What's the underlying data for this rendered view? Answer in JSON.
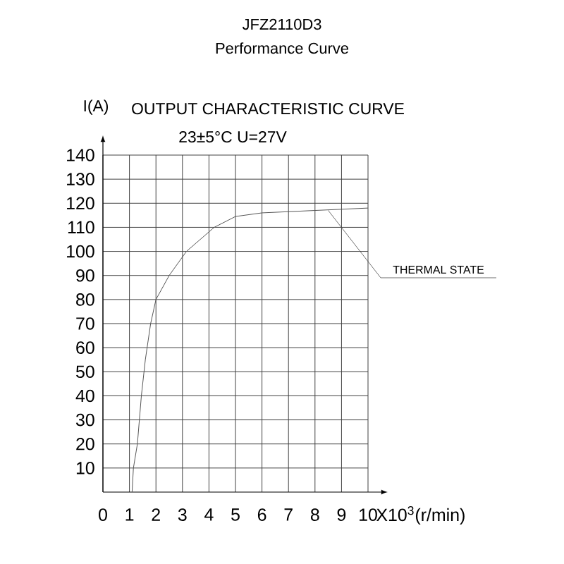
{
  "chart_data": {
    "type": "line",
    "title": "JFZ2110D3",
    "subtitle": "Performance Curve",
    "ylabel": "I(A)",
    "annotations": [
      "OUTPUT CHARACTERISTIC CURVE",
      "23±5°C U=27V",
      {
        "text": "THERMAL STATE",
        "x": 8.5,
        "y": 117
      }
    ],
    "x": [
      1.1,
      1.15,
      1.3,
      1.45,
      1.6,
      1.8,
      2.0,
      2.5,
      3.15,
      4.2,
      5,
      6,
      7,
      8,
      9,
      10
    ],
    "series": [
      {
        "color": "#555555",
        "values": [
          0,
          10,
          20,
          40,
          55,
          70,
          80,
          90,
          100,
          110,
          114.5,
          116,
          116.5,
          117,
          117.5,
          118
        ]
      }
    ],
    "xlim": [
      0,
      10
    ],
    "ylim": [
      0,
      140
    ],
    "xlabel": "X10$^{3}$(r/min)",
    "xticks": [
      0,
      1,
      2,
      3,
      4,
      5,
      6,
      7,
      8,
      9,
      10
    ],
    "yticks": [
      10,
      20,
      30,
      40,
      50,
      60,
      70,
      80,
      90,
      100,
      110,
      120,
      130,
      140
    ],
    "grid": true
  }
}
